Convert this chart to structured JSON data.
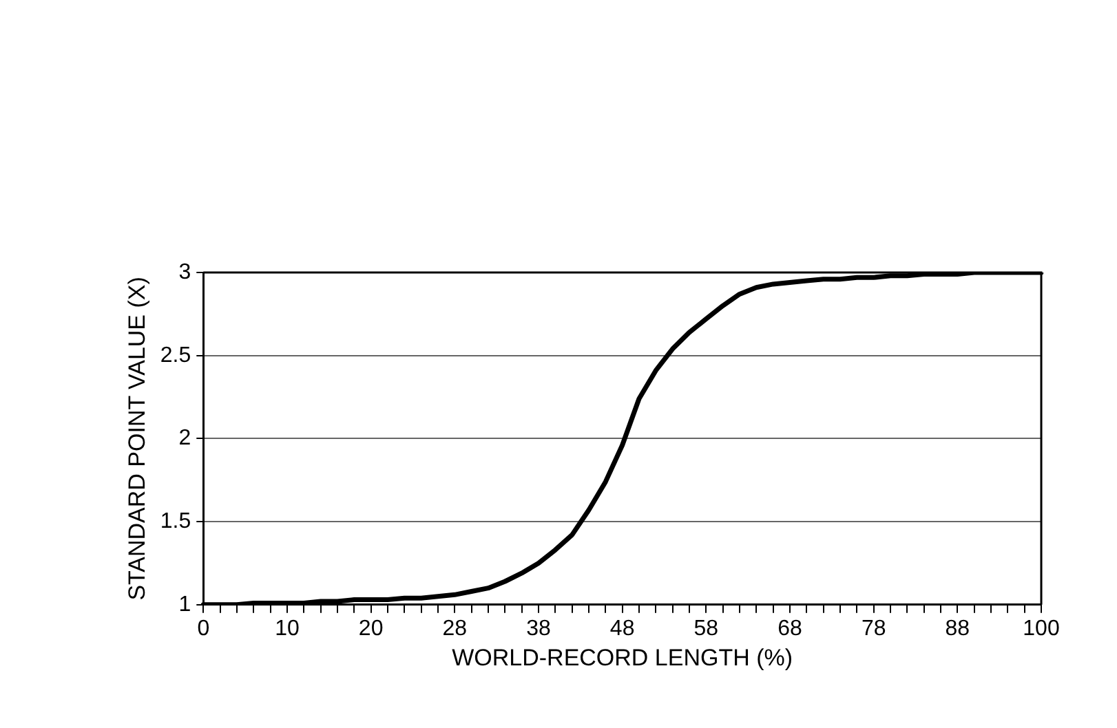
{
  "chart_data": {
    "type": "line",
    "xlabel": "WORLD-RECORD LENGTH (%)",
    "ylabel": "STANDARD POINT VALUE (X)",
    "categories": [
      "0",
      null,
      null,
      null,
      null,
      "10",
      null,
      null,
      null,
      null,
      "20",
      null,
      null,
      null,
      null,
      "28",
      null,
      null,
      null,
      null,
      "38",
      null,
      null,
      null,
      null,
      "48",
      null,
      null,
      null,
      null,
      "58",
      null,
      null,
      null,
      null,
      "68",
      null,
      null,
      null,
      null,
      "78",
      null,
      null,
      null,
      null,
      "88",
      null,
      null,
      null,
      null,
      "100"
    ],
    "series": [
      {
        "color": "#000000",
        "values": [
          1.0,
          1.0,
          1.0,
          1.01,
          1.01,
          1.01,
          1.01,
          1.02,
          1.02,
          1.03,
          1.03,
          1.03,
          1.04,
          1.04,
          1.05,
          1.06,
          1.08,
          1.1,
          1.14,
          1.19,
          1.25,
          1.33,
          1.42,
          1.57,
          1.74,
          1.96,
          2.24,
          2.41,
          2.54,
          2.64,
          2.72,
          2.8,
          2.87,
          2.91,
          2.93,
          2.94,
          2.95,
          2.96,
          2.96,
          2.97,
          2.97,
          2.98,
          2.98,
          2.99,
          2.99,
          2.99,
          3.0,
          3.0,
          3.0,
          3.0,
          3.0
        ]
      }
    ],
    "ylim": [
      1,
      3
    ],
    "yticks": [
      1,
      1.5,
      2,
      2.5,
      3
    ],
    "grid": "y",
    "legend": false,
    "marker": "none",
    "line_style": "solid"
  }
}
